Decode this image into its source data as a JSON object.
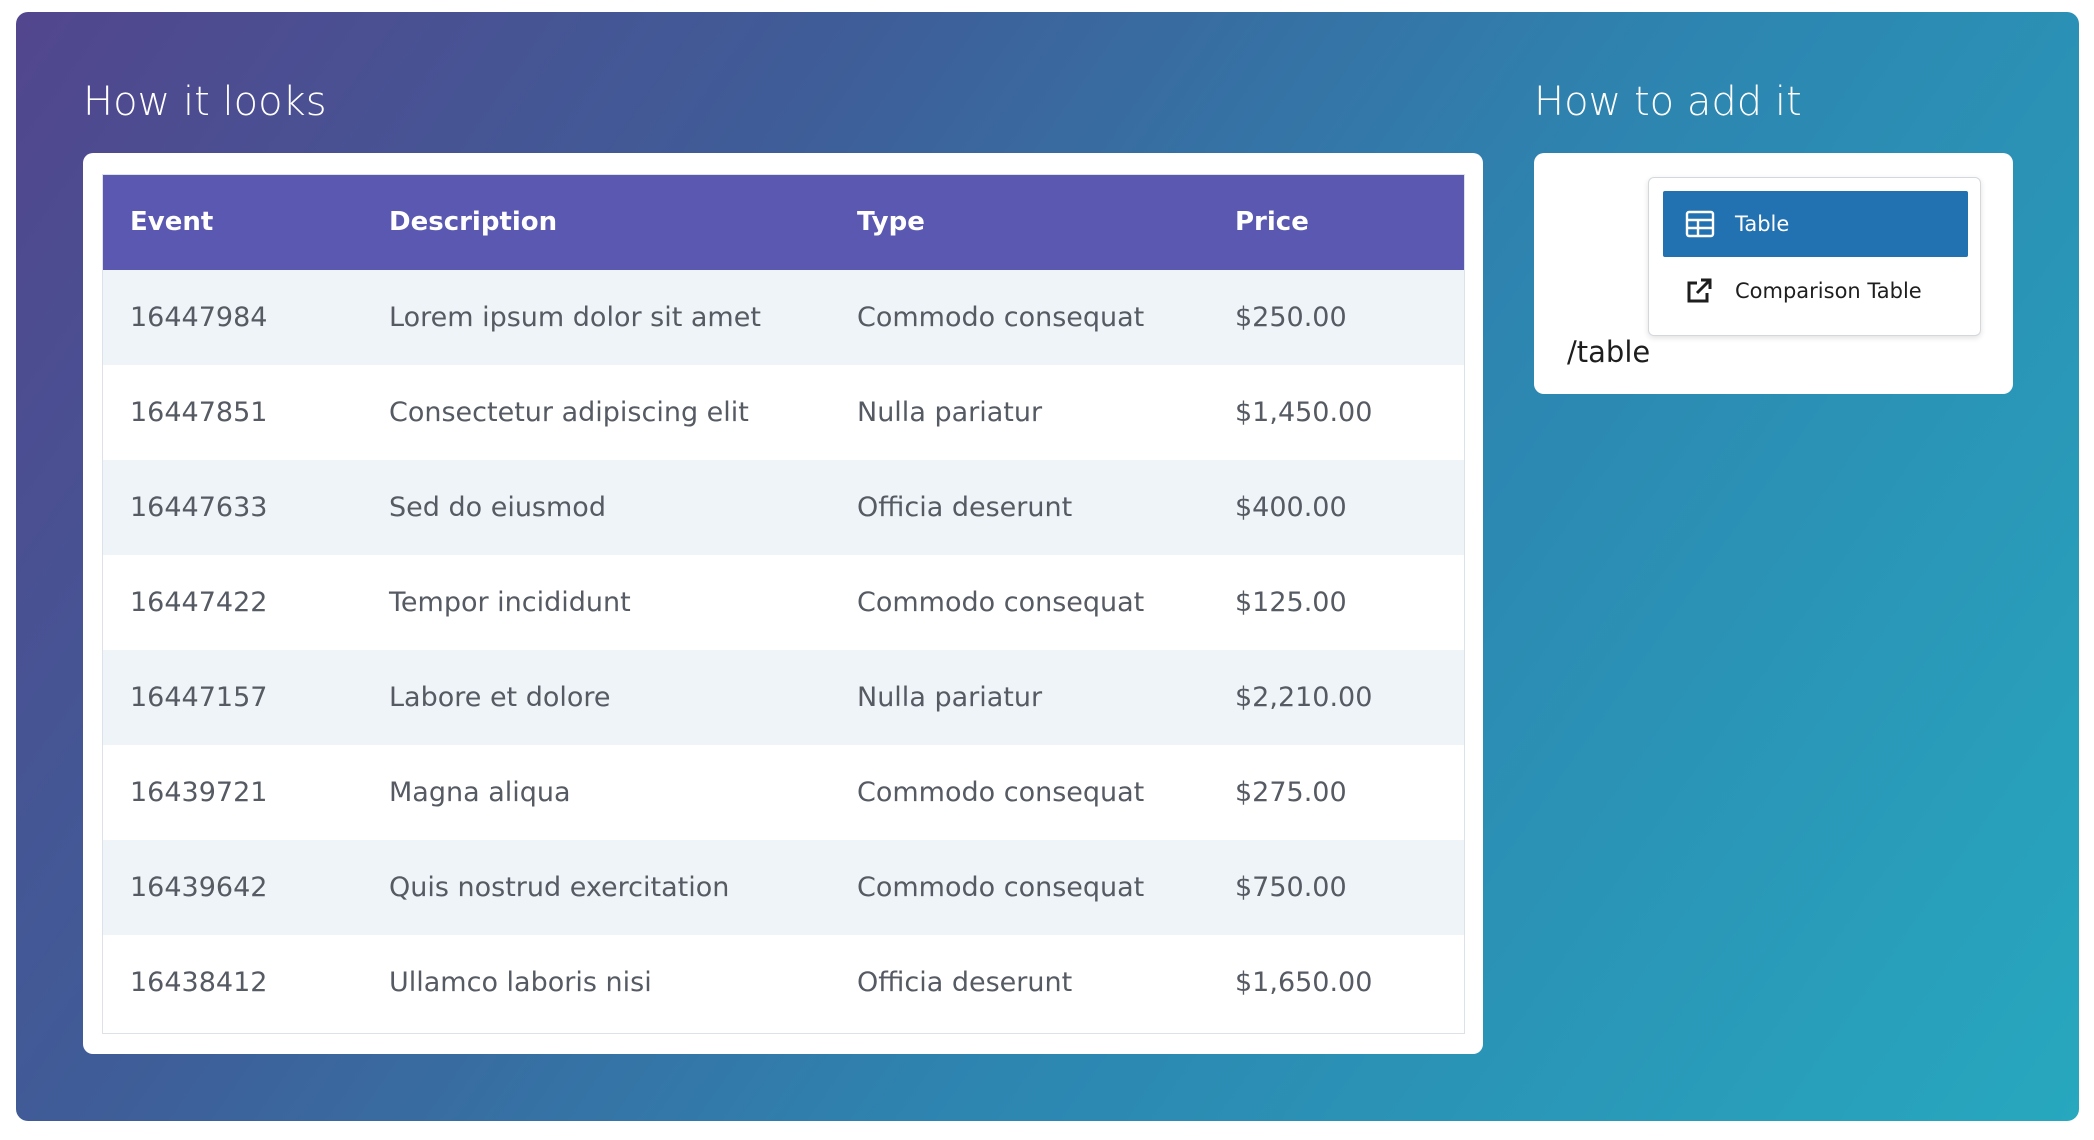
{
  "left": {
    "title": "How it looks"
  },
  "right": {
    "title": "How to add it"
  },
  "table": {
    "columns": [
      "Event",
      "Description",
      "Type",
      "Price"
    ],
    "rows": [
      [
        "16447984",
        "Lorem ipsum dolor sit amet",
        "Commodo consequat",
        "$250.00"
      ],
      [
        "16447851",
        "Consectetur adipiscing elit",
        "Nulla pariatur",
        "$1,450.00"
      ],
      [
        "16447633",
        "Sed do eiusmod",
        "Officia deserunt",
        "$400.00"
      ],
      [
        "16447422",
        "Tempor incididunt",
        "Commodo consequat",
        "$125.00"
      ],
      [
        "16447157",
        "Labore et dolore",
        "Nulla pariatur",
        "$2,210.00"
      ],
      [
        "16439721",
        "Magna aliqua",
        "Commodo consequat",
        "$275.00"
      ],
      [
        "16439642",
        "Quis nostrud exercitation",
        "Commodo consequat",
        "$750.00"
      ],
      [
        "16438412",
        "Ullamco laboris nisi",
        "Officia deserunt",
        "$1,650.00"
      ]
    ]
  },
  "menu": {
    "items": [
      "Table",
      "Comparison Table"
    ],
    "command": "/table"
  }
}
